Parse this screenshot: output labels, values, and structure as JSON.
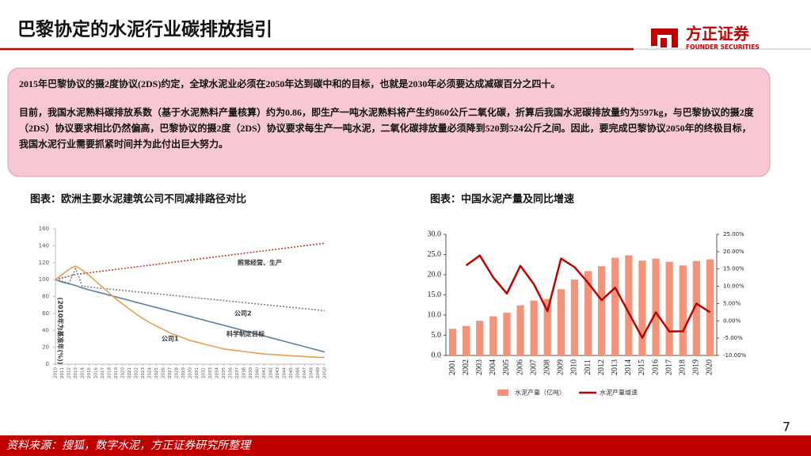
{
  "header": {
    "title": "巴黎协定的水泥行业碳排放指引",
    "logo_cn": "方正证券",
    "logo_en": "FOUNDER SECURITIES"
  },
  "summary": {
    "paragraphs": [
      "2015年巴黎协议的摄2度协议(2DS)约定，全球水泥业必须在2050年达到碳中和的目标，也就是2030年必须要达成减碳百分之四十。",
      "目前，我国水泥熟料碳排放系数（基于水泥熟料产量核算）约为0.86，即生产一吨水泥熟料将产生约860公斤二氧化碳，折算后我国水泥碳排放量约为597kg，与巴黎协议的摄2度（2DS）协议要求相比仍然偏高，巴黎协议的摄2度（2DS）协议要求每生产一吨水泥，二氧化碳排放量必须降到520到524公斤之间。因此，要完成巴黎协议2050年的终极目标，我国水泥行业需要抓紧时间并为此付出巨大努力。"
    ]
  },
  "chart_data": [
    {
      "type": "line",
      "title": "图表：欧洲主要水泥建筑公司不同减排路径对比",
      "y_label": "(2010年为基准年(%))",
      "x": [
        2010,
        2011,
        2012,
        2013,
        2014,
        2015,
        2016,
        2017,
        2018,
        2019,
        2020,
        2021,
        2022,
        2023,
        2024,
        2025,
        2026,
        2027,
        2028,
        2029,
        2030,
        2031,
        2032,
        2033,
        2034,
        2035,
        2036,
        2037,
        2038,
        2039,
        2040,
        2041,
        2042,
        2043,
        2044,
        2045,
        2046,
        2047,
        2048,
        2049,
        2050
      ],
      "xlim": [
        2010,
        2050
      ],
      "xticks": [
        2010,
        2011,
        2012,
        2013,
        2014,
        2015,
        2016,
        2017,
        2018,
        2019,
        2020,
        2021,
        2022,
        2023,
        2024,
        2025,
        2026,
        2027,
        2028,
        2029,
        2030,
        2031,
        2032,
        2033,
        2034,
        2035,
        2036,
        2037,
        2038,
        2039,
        2040,
        2041,
        2042,
        2043,
        2044,
        2045,
        2046,
        2047,
        2048,
        2049,
        2050
      ],
      "ylim": [
        0,
        160
      ],
      "yticks": [
        0,
        20,
        40,
        60,
        80,
        100,
        120,
        140,
        160
      ],
      "grid": false,
      "series": [
        {
          "name": "照常经营、生产",
          "color": "#c0392b",
          "line_style": "dotted",
          "values": [
            100,
            102,
            104,
            106,
            107,
            108,
            109,
            110,
            111,
            112,
            113,
            114,
            115,
            116,
            117,
            118,
            119,
            120,
            121,
            122,
            123,
            124,
            125,
            126,
            127,
            128,
            129,
            130,
            131,
            132,
            133,
            134,
            135,
            136,
            137,
            138,
            139,
            140,
            141,
            142,
            143
          ]
        },
        {
          "name": "公司2",
          "color": "#7f7f7f",
          "line_style": "dotted",
          "values": [
            100,
            98,
            96,
            113,
            92,
            91.2,
            90.4,
            89.6,
            88.8,
            88,
            87.2,
            86.4,
            85.6,
            84.8,
            84,
            83.2,
            82.4,
            81.6,
            80.8,
            80,
            79.2,
            78.4,
            77.6,
            76.8,
            76,
            75.2,
            74.4,
            73.6,
            72.8,
            72,
            71.2,
            70.4,
            69.6,
            68.8,
            68,
            67.2,
            66.4,
            65.6,
            64.8,
            64,
            63.2
          ]
        },
        {
          "name": "科学制定目标",
          "color": "#5b7fa6",
          "line_style": "solid",
          "values": [
            100,
            97,
            95,
            93,
            90,
            87.9,
            85.8,
            83.7,
            81.6,
            79.5,
            77.4,
            75.3,
            73.2,
            71.1,
            69,
            66.9,
            64.8,
            62.7,
            60.6,
            58.5,
            56.4,
            54.3,
            52.2,
            50.1,
            48,
            45.9,
            43.8,
            41.7,
            39.6,
            37.5,
            35.4,
            33.3,
            31.2,
            29.1,
            27,
            24.9,
            22.8,
            20.7,
            18.6,
            16.5,
            14.4
          ]
        },
        {
          "name": "公司1",
          "color": "#e8a050",
          "line_style": "solid",
          "values": [
            100,
            106,
            112,
            116,
            111,
            105,
            98,
            91,
            84,
            77,
            71,
            65,
            59,
            54,
            49,
            45,
            41,
            37,
            34,
            31,
            28,
            26,
            24,
            22,
            20,
            18,
            17,
            16,
            15,
            14,
            13,
            12,
            11.5,
            11,
            10.5,
            10,
            9.5,
            9,
            8.5,
            8,
            8
          ]
        }
      ]
    },
    {
      "type": "combo",
      "title": "图表：中国水泥产量及同比增速",
      "categories": [
        "2001",
        "2002",
        "2003",
        "2004",
        "2005",
        "2006",
        "2007",
        "2008",
        "2009",
        "2010",
        "2011",
        "2012",
        "2013",
        "2014",
        "2015",
        "2016",
        "2017",
        "2018",
        "2019",
        "2020"
      ],
      "ylim": [
        0,
        30
      ],
      "yticks": [
        {
          "value": 0,
          "label": "0.0"
        },
        {
          "value": 5,
          "label": "5.0"
        },
        {
          "value": 10,
          "label": "10.0"
        },
        {
          "value": 15,
          "label": "15.0"
        },
        {
          "value": 20,
          "label": "20.0"
        },
        {
          "value": 25,
          "label": "25.0"
        },
        {
          "value": 30,
          "label": "30.0"
        }
      ],
      "y2lim": [
        -10,
        25
      ],
      "y2ticks": [
        {
          "value": -10,
          "label": "-10.00%"
        },
        {
          "value": -5,
          "label": "-5.00%"
        },
        {
          "value": 0,
          "label": "0.00%"
        },
        {
          "value": 5,
          "label": "5.00%"
        },
        {
          "value": 10,
          "label": "10.00%"
        },
        {
          "value": 15,
          "label": "15.00%"
        },
        {
          "value": 20,
          "label": "20.00%"
        },
        {
          "value": 25,
          "label": "25.00%"
        }
      ],
      "legend": "bottom",
      "series": [
        {
          "name": "水泥产量（亿吨）",
          "type": "bar",
          "color": "#f4937a",
          "values": [
            6.6,
            7.3,
            8.6,
            9.7,
            10.6,
            12.4,
            13.6,
            14.0,
            16.4,
            18.8,
            20.9,
            22.1,
            24.2,
            24.8,
            23.5,
            24.0,
            23.2,
            22.3,
            23.4,
            23.8
          ]
        },
        {
          "name": "水泥产量增速",
          "type": "line",
          "axis": "y2",
          "color": "#c00000",
          "values": [
            null,
            16,
            18.9,
            12.5,
            7.9,
            15.9,
            10.6,
            2.8,
            18,
            15.5,
            11,
            6,
            9.6,
            2.3,
            -4.9,
            2.5,
            -3.1,
            -3,
            5,
            2.5
          ]
        }
      ]
    }
  ],
  "page_number": "7",
  "footer": "资料来源：搜狐，数字水泥，方正证券研究所整理"
}
